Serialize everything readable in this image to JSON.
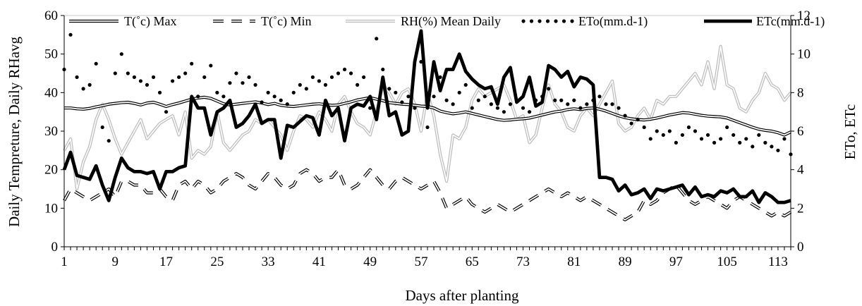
{
  "chart_data": {
    "type": "line",
    "xlabel": "Days after planting",
    "ylabel_left": "Daily Tempreture, Daily RHavg",
    "ylabel_right": "ETo, ETc",
    "ylim_left": [
      0,
      60
    ],
    "ylim_right": [
      0,
      12
    ],
    "yticks_left": [
      "0",
      "10",
      "20",
      "30",
      "40",
      "50",
      "60"
    ],
    "yticks_right": [
      "0",
      "2",
      "4",
      "6",
      "8",
      "10",
      "12"
    ],
    "xlim": [
      1,
      115
    ],
    "xticks": [
      "1",
      "9",
      "17",
      "25",
      "33",
      "41",
      "49",
      "57",
      "65",
      "73",
      "81",
      "89",
      "97",
      "105",
      "113"
    ],
    "grid": false,
    "legend_position": "top",
    "x": [
      1,
      2,
      3,
      4,
      5,
      6,
      7,
      8,
      9,
      10,
      11,
      12,
      13,
      14,
      15,
      16,
      17,
      18,
      19,
      20,
      21,
      22,
      23,
      24,
      25,
      26,
      27,
      28,
      29,
      30,
      31,
      32,
      33,
      34,
      35,
      36,
      37,
      38,
      39,
      40,
      41,
      42,
      43,
      44,
      45,
      46,
      47,
      48,
      49,
      50,
      51,
      52,
      53,
      54,
      55,
      56,
      57,
      58,
      59,
      60,
      61,
      62,
      63,
      64,
      65,
      66,
      67,
      68,
      69,
      70,
      71,
      72,
      73,
      74,
      75,
      76,
      77,
      78,
      79,
      80,
      81,
      82,
      83,
      84,
      85,
      86,
      87,
      88,
      89,
      90,
      91,
      92,
      93,
      94,
      95,
      96,
      97,
      98,
      99,
      100,
      101,
      102,
      103,
      104,
      105,
      106,
      107,
      108,
      109,
      110,
      111,
      112,
      113,
      114,
      115
    ],
    "series": [
      {
        "name": "T(˚c) Max",
        "axis": "left",
        "style": "double",
        "color": "#000000",
        "values": [
          36,
          36,
          35.8,
          35.7,
          35.9,
          36.3,
          36.6,
          37,
          37.2,
          37.4,
          37.5,
          37.2,
          36.8,
          37.3,
          37.5,
          37,
          36.4,
          36.9,
          37.3,
          37.8,
          38.3,
          38.6,
          38.8,
          38.5,
          37.8,
          37.1,
          36.8,
          37,
          37.2,
          37.4,
          37.6,
          37.3,
          36.9,
          37.2,
          36.7,
          36.5,
          36.4,
          36.6,
          36.8,
          37,
          37.1,
          36.9,
          36.7,
          36.8,
          37.2,
          37.6,
          38.1,
          38.4,
          38.7,
          38.3,
          37.9,
          37.4,
          37.2,
          37,
          36.9,
          36.7,
          36.5,
          36.4,
          36,
          35.2,
          34.8,
          34.5,
          34.7,
          35,
          34.6,
          34.2,
          33.8,
          33.4,
          33,
          32.8,
          32.9,
          33.1,
          33.2,
          33.4,
          33.8,
          34.2,
          34.6,
          35,
          35.2,
          35.6,
          35.8,
          35.6,
          35.9,
          36,
          35.7,
          35.2,
          34.6,
          34,
          33.5,
          33.2,
          33,
          32.9,
          33.1,
          33.4,
          33.8,
          34.2,
          34.5,
          34.8,
          34.7,
          34.4,
          34.1,
          33.9,
          33.8,
          33.7,
          33.4,
          32.8,
          32.2,
          31.6,
          31,
          30.5,
          30.2,
          30,
          29.6,
          29,
          29.8
        ]
      },
      {
        "name": "T(˚c)  Min",
        "axis": "left",
        "style": "dashed",
        "color": "#000000",
        "values": [
          12,
          15,
          14,
          13,
          12,
          13,
          14,
          15,
          13,
          17,
          17,
          16,
          16,
          14,
          14,
          15,
          13,
          12,
          16,
          17,
          15,
          17,
          16,
          14,
          15,
          17,
          18,
          19,
          18,
          16,
          15,
          17,
          19,
          18,
          16,
          15,
          16,
          19,
          20,
          19,
          17,
          18,
          18,
          20,
          16,
          15,
          16,
          18,
          20,
          18,
          16,
          15,
          17,
          18,
          17,
          16,
          15,
          16,
          17,
          14,
          10,
          11,
          12,
          13,
          11,
          10,
          9,
          10,
          11,
          10,
          9,
          10,
          11,
          12,
          13,
          14,
          15,
          14,
          13,
          14,
          13,
          12,
          13,
          12,
          11,
          10,
          9,
          8,
          7,
          8,
          9,
          12,
          11,
          12,
          14,
          15,
          16,
          14,
          12,
          11,
          12,
          13,
          12,
          11,
          10,
          12,
          13,
          12,
          11,
          10,
          9,
          8,
          9,
          8,
          9
        ]
      },
      {
        "name": "RH(%) Mean Daily",
        "axis": "left",
        "style": "gray",
        "color": "#bfbfbf",
        "values": [
          25,
          28,
          15,
          22,
          26,
          33,
          37,
          33,
          28,
          24,
          27,
          30,
          33,
          28,
          30,
          32,
          33,
          34,
          29,
          35,
          23,
          25,
          24,
          26,
          35,
          27,
          25,
          27,
          29,
          30,
          33,
          32,
          33,
          31,
          29,
          25,
          30,
          34,
          33,
          31,
          35,
          33,
          30,
          37,
          39,
          35,
          32,
          31,
          29,
          35,
          42,
          40,
          37,
          40,
          41,
          37,
          30,
          40,
          34,
          24,
          17,
          29,
          28,
          31,
          38,
          41,
          39,
          40,
          41,
          42,
          38,
          33,
          34,
          27,
          29,
          36,
          42,
          37,
          35,
          31,
          30,
          34,
          36,
          34,
          37,
          40,
          43,
          32,
          30,
          31,
          34,
          36,
          33,
          38,
          37,
          39,
          39,
          41,
          43,
          45,
          42,
          48,
          41,
          52,
          42,
          41,
          36,
          35,
          38,
          40,
          45,
          42,
          41,
          38,
          40
        ]
      },
      {
        "name": "ETo(mm.d-1)",
        "axis": "right",
        "style": "dotted",
        "color": "#000000",
        "values": [
          9.2,
          11,
          8.8,
          8.2,
          8.4,
          9.5,
          6.2,
          5.5,
          9,
          10,
          9,
          8.8,
          8.6,
          8.4,
          8.8,
          8,
          7,
          8.6,
          8.8,
          9,
          9.5,
          7.8,
          8.8,
          9.4,
          8,
          7.8,
          8.5,
          9,
          8.5,
          8.8,
          8.4,
          7.5,
          8,
          7.8,
          7.6,
          7.4,
          8,
          8.4,
          8.2,
          8.8,
          8.6,
          8.4,
          8.8,
          9,
          9.2,
          9,
          8.4,
          8.8,
          7.2,
          10.8,
          9.2,
          8.2,
          8,
          7.5,
          7.8,
          7.2,
          9.6,
          6.2,
          7.8,
          8.8,
          7.6,
          7.4,
          8,
          8.4,
          7.2,
          7.6,
          7.8,
          7.4,
          7.2,
          7,
          7.4,
          7.6,
          7.2,
          7,
          7.6,
          7.8,
          8.2,
          7.6,
          7.6,
          7.4,
          7.6,
          7.2,
          7.4,
          7.6,
          7.8,
          7.4,
          7.4,
          7.2,
          6.8,
          6.4,
          6.6,
          6.2,
          5.6,
          6,
          5.8,
          6,
          5.4,
          5.8,
          6.2,
          6,
          5.6,
          5.8,
          5.4,
          5.6,
          6.2,
          5.8,
          5.4,
          5.6,
          5.2,
          5.8,
          5.4,
          5.2,
          5,
          5.6,
          4.8
        ]
      },
      {
        "name": "ETc(mm.d-1)",
        "axis": "right",
        "style": "thick",
        "color": "#000000",
        "values": [
          4,
          4.9,
          3.7,
          3.6,
          3.5,
          4.2,
          3.2,
          2.4,
          3.6,
          4.6,
          4.1,
          3.9,
          3.9,
          3.8,
          3.9,
          3,
          3.9,
          3.9,
          4.1,
          4.2,
          7.8,
          7.2,
          7.2,
          5.8,
          7,
          7.2,
          7.6,
          6.2,
          6.4,
          6.8,
          7.4,
          6.4,
          6.6,
          6.6,
          4.6,
          6.3,
          6.2,
          6.5,
          6.8,
          6.7,
          5.8,
          7.6,
          6.8,
          7.2,
          5.5,
          7.2,
          7.4,
          7.3,
          7.8,
          6.6,
          8.8,
          6.8,
          7,
          5.8,
          6,
          9.6,
          11.2,
          7.2,
          9.6,
          8.1,
          9.2,
          9.2,
          10,
          9.1,
          8.7,
          8.4,
          8.2,
          8.3,
          7.4,
          8.8,
          9.3,
          7.5,
          7.8,
          8.8,
          7.3,
          7.5,
          9.4,
          9.2,
          8.8,
          9.1,
          8.3,
          8.8,
          8.7,
          8.4,
          3.6,
          3.6,
          3.5,
          2.9,
          3.2,
          2.7,
          2.8,
          3.0,
          2.5,
          3.0,
          2.9,
          3.0,
          3.1,
          3.2,
          2.7,
          3.1,
          2.6,
          2.7,
          2.6,
          2.9,
          2.8,
          3.0,
          2.6,
          2.6,
          2.9,
          2.3,
          2.8,
          2.6,
          2.3,
          2.3,
          2.4
        ]
      }
    ]
  }
}
